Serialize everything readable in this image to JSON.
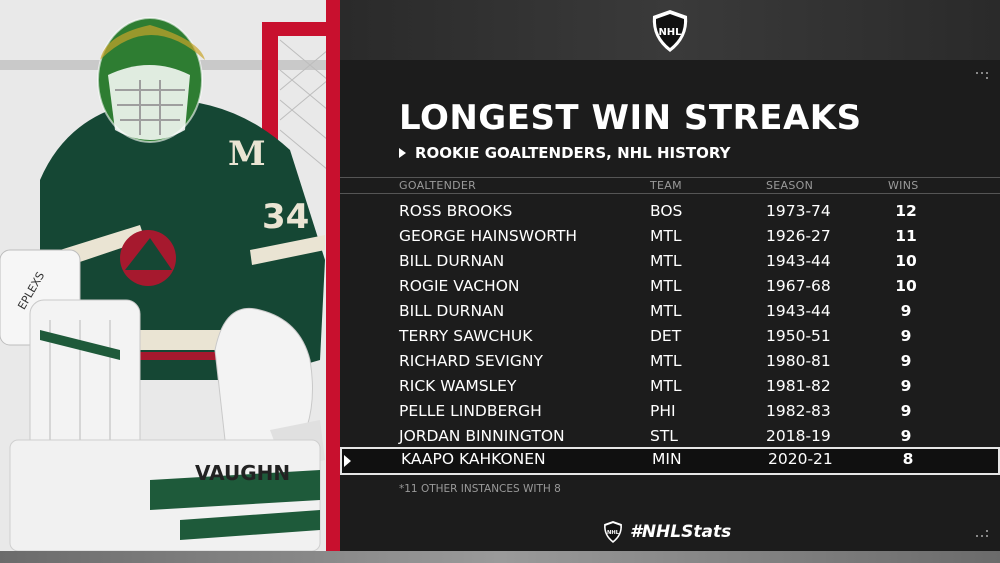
{
  "header": {
    "logo_icon": "nhl-shield-icon",
    "title": "LONGEST WIN STREAKS",
    "subtitle": "ROOKIE GOALTENDERS, NHL HISTORY"
  },
  "table": {
    "columns": [
      "GOALTENDER",
      "TEAM",
      "SEASON",
      "WINS"
    ],
    "rows": [
      {
        "goaltender": "ROSS BROOKS",
        "team": "BOS",
        "season": "1973-74",
        "wins": "12"
      },
      {
        "goaltender": "GEORGE HAINSWORTH",
        "team": "MTL",
        "season": "1926-27",
        "wins": "11"
      },
      {
        "goaltender": "BILL DURNAN",
        "team": "MTL",
        "season": "1943-44",
        "wins": "10"
      },
      {
        "goaltender": "ROGIE VACHON",
        "team": "MTL",
        "season": "1967-68",
        "wins": "10"
      },
      {
        "goaltender": "BILL DURNAN",
        "team": "MTL",
        "season": "1943-44",
        "wins": "9"
      },
      {
        "goaltender": "TERRY SAWCHUK",
        "team": "DET",
        "season": "1950-51",
        "wins": "9"
      },
      {
        "goaltender": "RICHARD SEVIGNY",
        "team": "MTL",
        "season": "1980-81",
        "wins": "9"
      },
      {
        "goaltender": "RICK WAMSLEY",
        "team": "MTL",
        "season": "1981-82",
        "wins": "9"
      },
      {
        "goaltender": "PELLE LINDBERGH",
        "team": "PHI",
        "season": "1982-83",
        "wins": "9"
      },
      {
        "goaltender": "JORDAN BINNINGTON",
        "team": "STL",
        "season": "2018-19",
        "wins": "9"
      },
      {
        "goaltender": "KAAPO KAHKONEN",
        "team": "MIN",
        "season": "2020-21",
        "wins": "8",
        "highlighted": true
      }
    ]
  },
  "footnote": "*11 OTHER INSTANCES WITH 8",
  "footer": {
    "hashtag": "#NHLStats",
    "logo_icon": "nhl-shield-icon"
  },
  "photo": {
    "description_icon": "goalie-photo",
    "jersey_number": "34",
    "jersey_letter": "M",
    "pad_brand": "VAUGHN",
    "glove_brand": "EPLEXS"
  },
  "colors": {
    "panel": "#1c1c1c",
    "jersey_green": "#154734",
    "text": "#ffffff",
    "muted": "#9a9a9a"
  }
}
